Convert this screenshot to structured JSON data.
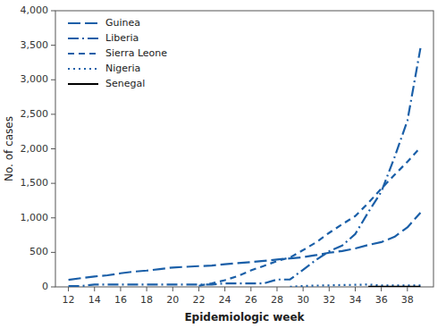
{
  "chart_data": {
    "type": "line",
    "xlabel": "Epidemiologic week",
    "ylabel": "No. of cases",
    "xlim": [
      11,
      40
    ],
    "ylim": [
      0,
      4000
    ],
    "xticks": [
      12,
      14,
      16,
      18,
      20,
      22,
      24,
      26,
      28,
      30,
      32,
      34,
      36,
      38
    ],
    "yticks": [
      0,
      500,
      {
        "value": 1000,
        "label": "1,000"
      },
      {
        "value": 1500,
        "label": "1,500"
      },
      {
        "value": 2000,
        "label": "2,000"
      },
      {
        "value": 2500,
        "label": "2,500"
      },
      {
        "value": 3000,
        "label": "3,000"
      },
      {
        "value": 3500,
        "label": "3,500"
      },
      {
        "value": 4000,
        "label": "4,000"
      }
    ],
    "grid": false,
    "legend": "upper left",
    "series": [
      {
        "name": "Guinea",
        "color": "#1a5fa8",
        "line_style": "longdash",
        "x": [
          12,
          13,
          14,
          15,
          16,
          17,
          18,
          19,
          20,
          21,
          22,
          23,
          24,
          25,
          26,
          27,
          28,
          29,
          30,
          31,
          32,
          33,
          34,
          35,
          36,
          37,
          38,
          39
        ],
        "values": [
          103,
          127,
          151,
          168,
          197,
          221,
          236,
          258,
          281,
          291,
          301,
          309,
          328,
          344,
          359,
          376,
          397,
          413,
          430,
          460,
          495,
          519,
          557,
          607,
          648,
          724,
          862,
          1074
        ]
      },
      {
        "name": "Liberia",
        "color": "#1a5fa8",
        "line_style": "dashdot",
        "x": [
          12,
          13,
          14,
          15,
          16,
          17,
          18,
          19,
          20,
          21,
          22,
          23,
          24,
          25,
          26,
          27,
          28,
          29,
          30,
          31,
          32,
          33,
          34,
          35,
          36,
          37,
          38,
          39
        ],
        "values": [
          13,
          13,
          34,
          34,
          34,
          34,
          34,
          34,
          34,
          34,
          34,
          34,
          51,
          51,
          51,
          51,
          107,
          107,
          249,
          391,
          516,
          599,
          765,
          1082,
          1378,
          1871,
          2407,
          3458
        ]
      },
      {
        "name": "Sierra Leone",
        "color": "#1a5fa8",
        "line_style": "dashed",
        "x": [
          22,
          23,
          24,
          25,
          26,
          27,
          28,
          29,
          30,
          31,
          32,
          33,
          34,
          35,
          36,
          37,
          38,
          39
        ],
        "values": [
          16,
          52,
          97,
          158,
          239,
          305,
          374,
          427,
          533,
          646,
          783,
          907,
          1026,
          1216,
          1424,
          1620,
          1813,
          2021
        ]
      },
      {
        "name": "Nigeria",
        "color": "#1a5fa8",
        "line_style": "dotted",
        "x": [
          29,
          30,
          31,
          32,
          33,
          34,
          35,
          36,
          37,
          38,
          39
        ],
        "values": [
          2,
          13,
          19,
          22,
          27,
          30,
          34,
          20,
          20,
          20,
          21
        ]
      },
      {
        "name": "Senegal",
        "color": "#000000",
        "line_style": "solid",
        "x": [
          35,
          36,
          37,
          38,
          39
        ],
        "values": [
          1,
          1,
          1,
          1,
          1
        ]
      }
    ]
  }
}
